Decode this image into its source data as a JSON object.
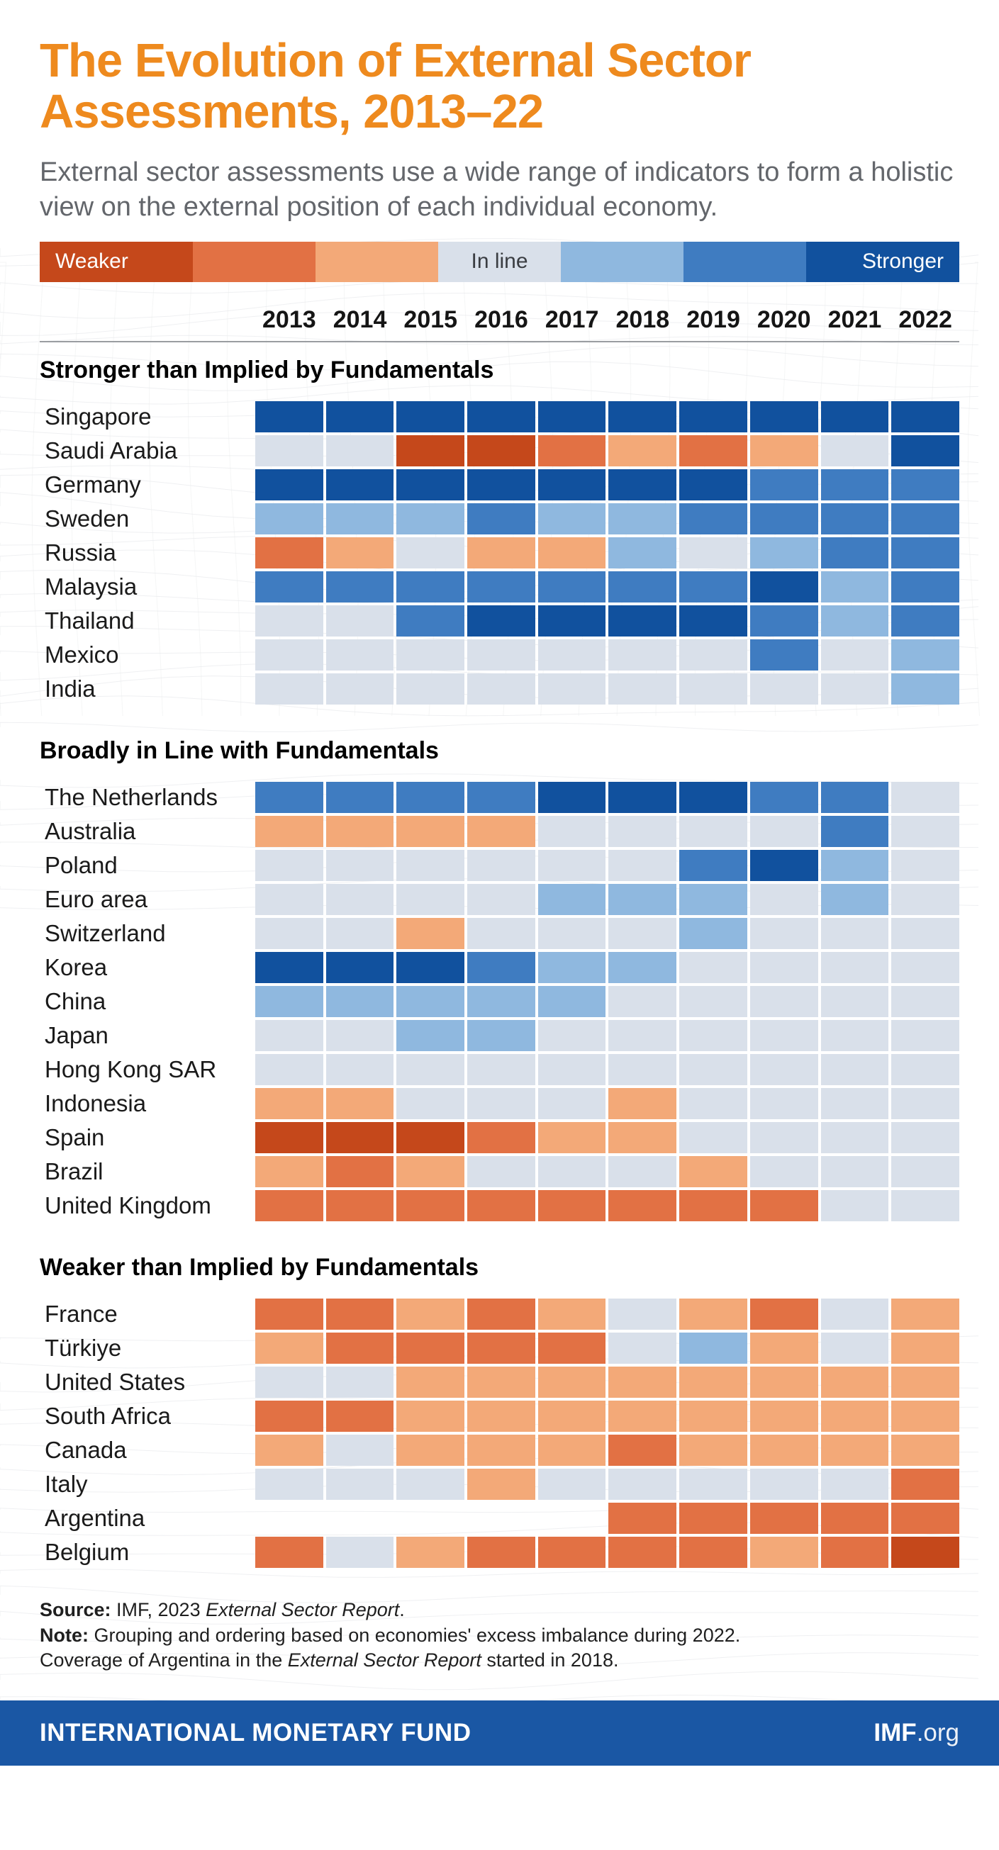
{
  "title": {
    "line1": "The Evolution of External Sector",
    "line2": "Assessments, 2013–22"
  },
  "subtitle": "External sector assessments use a wide range of indicators to form a holistic view on the external position of each individual economy.",
  "legend": {
    "weaker_label": "Weaker",
    "inline_label": "In line",
    "stronger_label": "Stronger",
    "segments": [
      {
        "code": "DO",
        "color": "#C5481B",
        "weight": 1.25
      },
      {
        "code": "MO",
        "color": "#E27144",
        "weight": 1.0
      },
      {
        "code": "LO",
        "color": "#F3A978",
        "weight": 1.0
      },
      {
        "code": "IL",
        "color": "#D9E0EA",
        "weight": 1.0
      },
      {
        "code": "LB",
        "color": "#8FB8DF",
        "weight": 1.0
      },
      {
        "code": "MB",
        "color": "#3F7CC1",
        "weight": 1.0
      },
      {
        "code": "DB",
        "color": "#11519E",
        "weight": 1.25
      }
    ]
  },
  "colors": {
    "accent_orange": "#EE8A1E",
    "subtitle_gray": "#63666B",
    "footer_blue": "#1A57A4",
    "scale": {
      "DO": "#C5481B",
      "MO": "#E27144",
      "LO": "#F3A978",
      "IL": "#D9E0EA",
      "LB": "#8FB8DF",
      "MB": "#3F7CC1",
      "DB": "#11519E",
      "NA": "transparent"
    }
  },
  "chart_data": {
    "type": "heatmap",
    "x": [
      "2013",
      "2014",
      "2015",
      "2016",
      "2017",
      "2018",
      "2019",
      "2020",
      "2021",
      "2022"
    ],
    "value_scale": [
      {
        "code": "DO",
        "meaning": "much weaker",
        "color": "#C5481B"
      },
      {
        "code": "MO",
        "meaning": "weaker",
        "color": "#E27144"
      },
      {
        "code": "LO",
        "meaning": "moderately weaker",
        "color": "#F3A978"
      },
      {
        "code": "IL",
        "meaning": "in line",
        "color": "#D9E0EA"
      },
      {
        "code": "LB",
        "meaning": "moderately stronger",
        "color": "#8FB8DF"
      },
      {
        "code": "MB",
        "meaning": "stronger",
        "color": "#3F7CC1"
      },
      {
        "code": "DB",
        "meaning": "much stronger",
        "color": "#11519E"
      },
      {
        "code": "NA",
        "meaning": "no assessment",
        "color": "transparent"
      }
    ],
    "groups": [
      {
        "label": "Stronger than Implied by Fundamentals",
        "rows": [
          {
            "country": "Singapore",
            "values": [
              "DB",
              "DB",
              "DB",
              "DB",
              "DB",
              "DB",
              "DB",
              "DB",
              "DB",
              "DB"
            ]
          },
          {
            "country": "Saudi Arabia",
            "values": [
              "IL",
              "IL",
              "DO",
              "DO",
              "MO",
              "LO",
              "MO",
              "LO",
              "IL",
              "DB"
            ]
          },
          {
            "country": "Germany",
            "values": [
              "DB",
              "DB",
              "DB",
              "DB",
              "DB",
              "DB",
              "DB",
              "MB",
              "MB",
              "MB"
            ]
          },
          {
            "country": "Sweden",
            "values": [
              "LB",
              "LB",
              "LB",
              "MB",
              "LB",
              "LB",
              "MB",
              "MB",
              "MB",
              "MB"
            ]
          },
          {
            "country": "Russia",
            "values": [
              "MO",
              "LO",
              "IL",
              "LO",
              "LO",
              "LB",
              "IL",
              "LB",
              "MB",
              "MB"
            ]
          },
          {
            "country": "Malaysia",
            "values": [
              "MB",
              "MB",
              "MB",
              "MB",
              "MB",
              "MB",
              "MB",
              "DB",
              "LB",
              "MB"
            ]
          },
          {
            "country": "Thailand",
            "values": [
              "IL",
              "IL",
              "MB",
              "DB",
              "DB",
              "DB",
              "DB",
              "MB",
              "LB",
              "MB"
            ]
          },
          {
            "country": "Mexico",
            "values": [
              "IL",
              "IL",
              "IL",
              "IL",
              "IL",
              "IL",
              "IL",
              "MB",
              "IL",
              "LB"
            ]
          },
          {
            "country": "India",
            "values": [
              "IL",
              "IL",
              "IL",
              "IL",
              "IL",
              "IL",
              "IL",
              "IL",
              "IL",
              "LB"
            ]
          }
        ]
      },
      {
        "label": "Broadly in Line with Fundamentals",
        "rows": [
          {
            "country": "The Netherlands",
            "values": [
              "MB",
              "MB",
              "MB",
              "MB",
              "DB",
              "DB",
              "DB",
              "MB",
              "MB",
              "IL"
            ]
          },
          {
            "country": "Australia",
            "values": [
              "LO",
              "LO",
              "LO",
              "LO",
              "IL",
              "IL",
              "IL",
              "IL",
              "MB",
              "IL"
            ]
          },
          {
            "country": "Poland",
            "values": [
              "IL",
              "IL",
              "IL",
              "IL",
              "IL",
              "IL",
              "MB",
              "DB",
              "LB",
              "IL"
            ]
          },
          {
            "country": "Euro area",
            "values": [
              "IL",
              "IL",
              "IL",
              "IL",
              "LB",
              "LB",
              "LB",
              "IL",
              "LB",
              "IL"
            ]
          },
          {
            "country": "Switzerland",
            "values": [
              "IL",
              "IL",
              "LO",
              "IL",
              "IL",
              "IL",
              "LB",
              "IL",
              "IL",
              "IL"
            ]
          },
          {
            "country": "Korea",
            "values": [
              "DB",
              "DB",
              "DB",
              "MB",
              "LB",
              "LB",
              "IL",
              "IL",
              "IL",
              "IL"
            ]
          },
          {
            "country": "China",
            "values": [
              "LB",
              "LB",
              "LB",
              "LB",
              "LB",
              "IL",
              "IL",
              "IL",
              "IL",
              "IL"
            ]
          },
          {
            "country": "Japan",
            "values": [
              "IL",
              "IL",
              "LB",
              "LB",
              "IL",
              "IL",
              "IL",
              "IL",
              "IL",
              "IL"
            ]
          },
          {
            "country": "Hong Kong SAR",
            "values": [
              "IL",
              "IL",
              "IL",
              "IL",
              "IL",
              "IL",
              "IL",
              "IL",
              "IL",
              "IL"
            ]
          },
          {
            "country": "Indonesia",
            "values": [
              "LO",
              "LO",
              "IL",
              "IL",
              "IL",
              "LO",
              "IL",
              "IL",
              "IL",
              "IL"
            ]
          },
          {
            "country": "Spain",
            "values": [
              "DO",
              "DO",
              "DO",
              "MO",
              "LO",
              "LO",
              "IL",
              "IL",
              "IL",
              "IL"
            ]
          },
          {
            "country": "Brazil",
            "values": [
              "LO",
              "MO",
              "LO",
              "IL",
              "IL",
              "IL",
              "LO",
              "IL",
              "IL",
              "IL"
            ]
          },
          {
            "country": "United Kingdom",
            "values": [
              "MO",
              "MO",
              "MO",
              "MO",
              "MO",
              "MO",
              "MO",
              "MO",
              "IL",
              "IL"
            ]
          }
        ]
      },
      {
        "label": "Weaker than Implied by Fundamentals",
        "rows": [
          {
            "country": "France",
            "values": [
              "MO",
              "MO",
              "LO",
              "MO",
              "LO",
              "IL",
              "LO",
              "MO",
              "IL",
              "LO"
            ]
          },
          {
            "country": "Türkiye",
            "values": [
              "LO",
              "MO",
              "MO",
              "MO",
              "MO",
              "IL",
              "LB",
              "LO",
              "IL",
              "LO"
            ]
          },
          {
            "country": "United States",
            "values": [
              "IL",
              "IL",
              "LO",
              "LO",
              "LO",
              "LO",
              "LO",
              "LO",
              "LO",
              "LO"
            ]
          },
          {
            "country": "South Africa",
            "values": [
              "MO",
              "MO",
              "LO",
              "LO",
              "LO",
              "LO",
              "LO",
              "LO",
              "LO",
              "LO"
            ]
          },
          {
            "country": "Canada",
            "values": [
              "LO",
              "IL",
              "LO",
              "LO",
              "LO",
              "MO",
              "LO",
              "LO",
              "LO",
              "LO"
            ]
          },
          {
            "country": "Italy",
            "values": [
              "IL",
              "IL",
              "IL",
              "LO",
              "IL",
              "IL",
              "IL",
              "IL",
              "IL",
              "MO"
            ]
          },
          {
            "country": "Argentina",
            "values": [
              "NA",
              "NA",
              "NA",
              "NA",
              "NA",
              "MO",
              "MO",
              "MO",
              "MO",
              "MO"
            ]
          },
          {
            "country": "Belgium",
            "values": [
              "MO",
              "IL",
              "LO",
              "MO",
              "MO",
              "MO",
              "MO",
              "LO",
              "MO",
              "DO"
            ]
          }
        ]
      }
    ]
  },
  "footnotes": {
    "source_label": "Source:",
    "source_pre": " IMF, 2023 ",
    "source_italic": "External Sector Report",
    "source_post": ".",
    "note_label": "Note:",
    "note_text": " Grouping and ordering based on economies' excess imbalance during 2022.",
    "coverage_pre": "Coverage of Argentina in the ",
    "coverage_italic": "External Sector Report",
    "coverage_post": " started in 2018."
  },
  "footer": {
    "org": "INTERNATIONAL MONETARY FUND",
    "site_bold": "IMF",
    "site_rest": ".org"
  }
}
